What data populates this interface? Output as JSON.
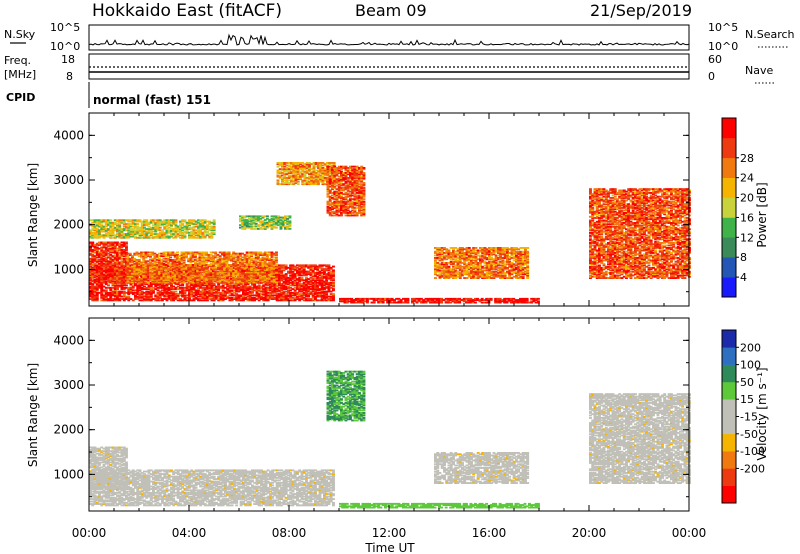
{
  "header": {
    "title": "Hokkaido East (fitACF)",
    "beam": "Beam 09",
    "date": "21/Sep/2019"
  },
  "nsky_panel": {
    "label": "N.Sky",
    "right_label": "N.Search",
    "left_ticks": [
      "10^5",
      "10^0"
    ],
    "right_ticks": [
      "10^5",
      "10^0"
    ]
  },
  "freq_panel": {
    "label_line1": "Freq.",
    "label_line2": "[MHz]",
    "right_label": "Nave",
    "left_ticks": [
      "18",
      "8"
    ],
    "right_ticks": [
      "60",
      "0"
    ]
  },
  "cpid_panel": {
    "label": "CPID",
    "mode_text": "normal (fast) 151"
  },
  "chart_data": [
    {
      "type": "heatmap",
      "panel": "power",
      "ylabel": "Slant Range [km]",
      "xlabel": "",
      "ylim": [
        180,
        4500
      ],
      "x_ticks": [
        "00:00",
        "04:00",
        "08:00",
        "12:00",
        "16:00",
        "20:00",
        "00:00"
      ],
      "y_ticks": [
        "1000",
        "2000",
        "3000",
        "4000"
      ],
      "colorbar": {
        "label": "Power [dB]",
        "ticks": [
          "4",
          "8",
          "12",
          "16",
          "20",
          "24",
          "28"
        ],
        "colors": [
          "#1a1aff",
          "#2457b5",
          "#3a8a5a",
          "#3fb34a",
          "#c8d23a",
          "#f5b400",
          "#f07a10",
          "#ee3a10",
          "#ff0000"
        ]
      },
      "regions": [
        {
          "t0": 0.0,
          "t1": 9.8,
          "r0": 300,
          "r1": 1100,
          "level": 27
        },
        {
          "t0": 0.0,
          "t1": 1.5,
          "r0": 700,
          "r1": 1600,
          "level": 26
        },
        {
          "t0": 1.5,
          "t1": 7.5,
          "r0": 700,
          "r1": 1400,
          "level": 22
        },
        {
          "t0": 0.0,
          "t1": 5.0,
          "r0": 1700,
          "r1": 2100,
          "level": 16
        },
        {
          "t0": 6.0,
          "t1": 8.0,
          "r0": 1900,
          "r1": 2200,
          "level": 14
        },
        {
          "t0": 7.5,
          "t1": 9.8,
          "r0": 2900,
          "r1": 3400,
          "level": 20
        },
        {
          "t0": 9.5,
          "t1": 11.0,
          "r0": 2200,
          "r1": 3300,
          "level": 24
        },
        {
          "t0": 13.8,
          "t1": 17.5,
          "r0": 800,
          "r1": 1500,
          "level": 22
        },
        {
          "t0": 10.0,
          "t1": 18.0,
          "r0": 250,
          "r1": 350,
          "level": 28
        },
        {
          "t0": 20.0,
          "t1": 24.0,
          "r0": 800,
          "r1": 2800,
          "level": 24
        }
      ]
    },
    {
      "type": "heatmap",
      "panel": "velocity",
      "ylabel": "Slant Range [km]",
      "xlabel": "Time UT",
      "ylim": [
        180,
        4500
      ],
      "x_ticks": [
        "00:00",
        "04:00",
        "08:00",
        "12:00",
        "16:00",
        "20:00",
        "00:00"
      ],
      "y_ticks": [
        "1000",
        "2000",
        "3000",
        "4000"
      ],
      "colorbar": {
        "label": "Velocity [m s⁻¹]",
        "ticks": [
          "200",
          "100",
          "50",
          "15",
          "-15",
          "-50",
          "-100",
          "-200"
        ],
        "colors": [
          "#1a2aa8",
          "#2f6fc0",
          "#2f8a5a",
          "#5cc83a",
          "#c0c0b8",
          "#c0c0b8",
          "#f5b400",
          "#f07a10",
          "#ee3a10",
          "#ff0000"
        ]
      },
      "regions": [
        {
          "t0": 0.0,
          "t1": 9.8,
          "r0": 300,
          "r1": 1100,
          "level": 0
        },
        {
          "t0": 0.0,
          "t1": 1.5,
          "r0": 700,
          "r1": 1600,
          "level": 0
        },
        {
          "t0": 13.8,
          "t1": 17.5,
          "r0": 800,
          "r1": 1500,
          "level": 0
        },
        {
          "t0": 20.0,
          "t1": 24.0,
          "r0": 800,
          "r1": 2800,
          "level": 0
        },
        {
          "t0": 10.0,
          "t1": 18.0,
          "r0": 250,
          "r1": 350,
          "level": 40
        },
        {
          "t0": 9.5,
          "t1": 11.0,
          "r0": 2200,
          "r1": 3300,
          "level": 30
        }
      ]
    }
  ]
}
